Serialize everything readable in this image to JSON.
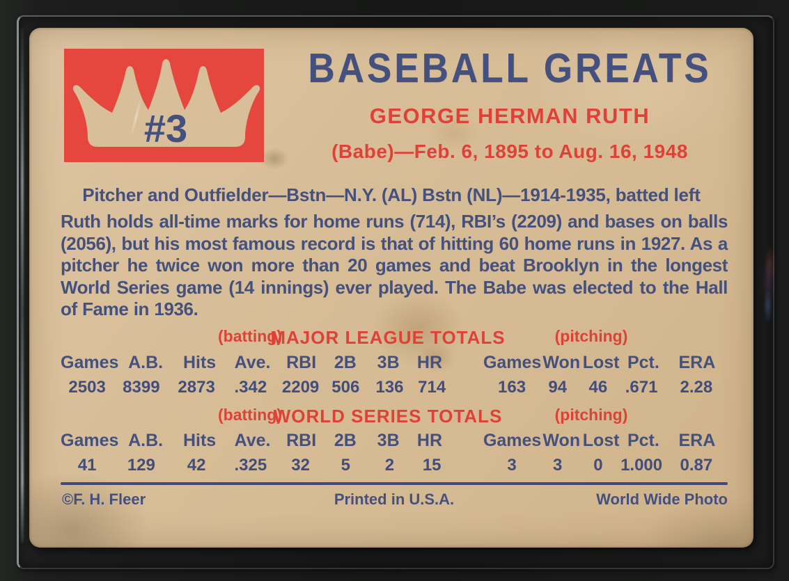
{
  "colors": {
    "navy_text": "#44507e",
    "red_text": "#df4138",
    "red_box": "#e5473e",
    "card_background": "#d7bd97",
    "backdrop": "#171817"
  },
  "header": {
    "set_title": "BASEBALL GREATS",
    "card_number": "#3",
    "player_name": "GEORGE HERMAN RUTH",
    "nickname_dates": "(Babe)—Feb. 6, 1895 to Aug. 16, 1948"
  },
  "position_line": "Pitcher and Outfielder—Bstn—N.Y. (AL) Bstn (NL)—1914-1935, batted left",
  "bio": "Ruth holds all-time marks for home runs (714), RBI’s (2209) and bases on balls (2056), but his most famous record is that of hitting 60 home runs in 1927. As a pitcher he twice won more than 20 games and beat Brooklyn in the longest World Series game (14 innings) ever played. The Babe was elected to the Hall of Fame in 1936.",
  "stats": {
    "major_league": {
      "batting_label": "(batting)",
      "title": "MAJOR LEAGUE TOTALS",
      "pitching_label": "(pitching)",
      "headers": [
        "Games",
        "A.B.",
        "Hits",
        "Ave.",
        "RBI",
        "2B",
        "3B",
        "HR",
        "Games",
        "Won",
        "Lost",
        "Pct.",
        "ERA"
      ],
      "values": [
        "2503",
        "8399",
        "2873",
        ".342",
        "2209",
        "506",
        "136",
        "714",
        "163",
        "94",
        "46",
        ".671",
        "2.28"
      ]
    },
    "world_series": {
      "batting_label": "(batting)",
      "title": "WORLD SERIES TOTALS",
      "pitching_label": "(pitching)",
      "headers": [
        "Games",
        "A.B.",
        "Hits",
        "Ave.",
        "RBI",
        "2B",
        "3B",
        "HR",
        "Games",
        "Won",
        "Lost",
        "Pct.",
        "ERA"
      ],
      "values": [
        "41",
        "129",
        "42",
        ".325",
        "32",
        "5",
        "2",
        "15",
        "3",
        "3",
        "0",
        "1.000",
        "0.87"
      ]
    }
  },
  "footer": {
    "copyright": "©F. H. Fleer",
    "printed_in": "Printed in U.S.A.",
    "photo_credit": "World Wide Photo"
  }
}
